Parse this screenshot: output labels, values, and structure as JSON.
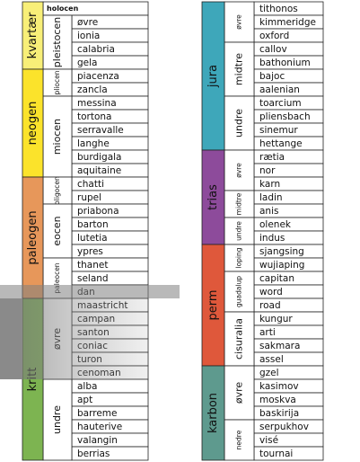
{
  "columns": [
    {
      "periods": [
        {
          "name": "kvartær",
          "color": "#f8ef78",
          "epochs": [
            {
              "name": "holocen",
              "stages": []
            },
            {
              "name": "pleistocen",
              "stages": [
                "øvre",
                "ionia",
                "calabria",
                "gela"
              ]
            }
          ]
        },
        {
          "name": "neogen",
          "color": "#fbe32b",
          "epochs": [
            {
              "name": "pliocen",
              "stages": [
                "piacenza",
                "zancla"
              ]
            },
            {
              "name": "miocen",
              "stages": [
                "messina",
                "tortona",
                "serravalle",
                "langhe",
                "burdigala",
                "aquitaine"
              ]
            }
          ]
        },
        {
          "name": "paleogen",
          "color": "#e7975a",
          "epochs": [
            {
              "name": "oligocen",
              "stages": [
                "chatti",
                "rupel"
              ]
            },
            {
              "name": "eocen",
              "stages": [
                "priabona",
                "barton",
                "lutetia",
                "ypres"
              ]
            },
            {
              "name": "paleocen",
              "stages": [
                "thanet",
                "seland",
                "dan"
              ]
            }
          ]
        },
        {
          "name": "kritt",
          "color": "#7db451",
          "epochs": [
            {
              "name": "øvre",
              "stages": [
                "maastricht",
                "campan",
                "santon",
                "coniac",
                "turon",
                "cenoman"
              ]
            },
            {
              "name": "undre",
              "stages": [
                "alba",
                "apt",
                "barreme",
                "hauterive",
                "valangin",
                "berrias"
              ]
            }
          ]
        }
      ]
    },
    {
      "periods": [
        {
          "name": "jura",
          "color": "#3ea7ba",
          "epochs": [
            {
              "name": "øvre",
              "stages": [
                "tithonos",
                "kimmeridge",
                "oxford"
              ]
            },
            {
              "name": "midtre",
              "stages": [
                "callov",
                "bathonium",
                "bajoc",
                "aalenian"
              ]
            },
            {
              "name": "undre",
              "stages": [
                "toarcium",
                "pliensbach",
                "sinemur",
                "hettange"
              ]
            }
          ]
        },
        {
          "name": "trias",
          "color": "#8d4b9b",
          "epochs": [
            {
              "name": "øvre",
              "stages": [
                "rætia",
                "nor",
                "karn"
              ]
            },
            {
              "name": "midtre",
              "stages": [
                "ladin",
                "anis"
              ]
            },
            {
              "name": "undre",
              "stages": [
                "olenek",
                "indus"
              ]
            }
          ]
        },
        {
          "name": "perm",
          "color": "#df583b",
          "epochs": [
            {
              "name": "loping",
              "stages": [
                "sjangsing",
                "wujiaping"
              ]
            },
            {
              "name": "guadalup",
              "stages": [
                "capitan",
                "word",
                "road"
              ]
            },
            {
              "name": "cisuralia",
              "stages": [
                "kungur",
                "arti",
                "sakmara",
                "assel"
              ]
            }
          ]
        },
        {
          "name": "karbon",
          "color": "#5e9a8e",
          "epochs": [
            {
              "name": "øvre",
              "stages": [
                "gzel",
                "kasimov",
                "moskva",
                "baskirija"
              ]
            },
            {
              "name": "nedre",
              "stages": [
                "serpukhov",
                "visé",
                "tournai"
              ]
            }
          ]
        }
      ]
    }
  ]
}
